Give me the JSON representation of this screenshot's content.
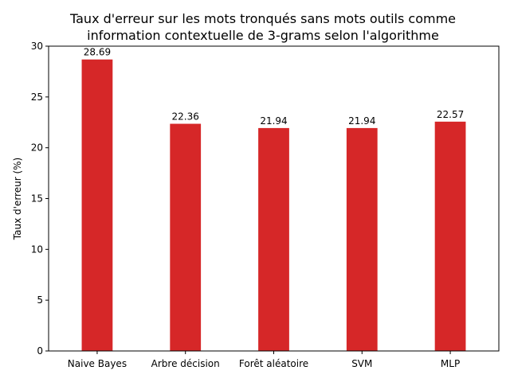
{
  "chart_data": {
    "type": "bar",
    "title_lines": [
      "Taux d'erreur sur les mots tronqués sans mots outils comme",
      "information contextuelle de 3-grams selon l'algorithme"
    ],
    "xlabel": "",
    "ylabel": "Taux d'erreur (%)",
    "categories": [
      "Naive Bayes",
      "Arbre décision",
      "Forêt aléatoire",
      "SVM",
      "MLP"
    ],
    "values": [
      28.69,
      22.36,
      21.94,
      21.94,
      22.57
    ],
    "value_labels": [
      "28.69",
      "22.36",
      "21.94",
      "21.94",
      "22.57"
    ],
    "ylim": [
      0,
      30
    ],
    "yticks": [
      0,
      5,
      10,
      15,
      20,
      25,
      30
    ],
    "ytick_labels": [
      "0",
      "5",
      "10",
      "15",
      "20",
      "25",
      "30"
    ],
    "bar_color": "#d62728",
    "grid": false,
    "legend": "none"
  }
}
